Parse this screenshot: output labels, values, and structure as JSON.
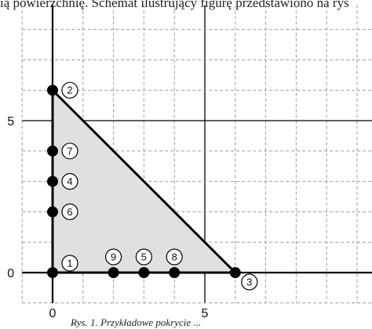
{
  "caption_top": "ią powierzchnię. Schemat ilustrujący figurę przedstawiono na rys",
  "caption_bottom": "Rys. 1. Przykładowe pokrycie ...",
  "axes": {
    "x_ticks": [
      {
        "value": 0,
        "label": "0"
      },
      {
        "value": 5,
        "label": "5"
      }
    ],
    "y_ticks": [
      {
        "value": 0,
        "label": "0"
      },
      {
        "value": 5,
        "label": "5"
      }
    ],
    "xlim": [
      -1,
      10.5
    ],
    "ylim": [
      -1,
      8.8
    ],
    "grid_step": 1
  },
  "triangle": {
    "vertices": [
      [
        0,
        0
      ],
      [
        0,
        6
      ],
      [
        6,
        0
      ]
    ],
    "fill": "#e0e0e0",
    "stroke": "#000000"
  },
  "points": [
    {
      "label": "1",
      "x": 0,
      "y": 0
    },
    {
      "label": "2",
      "x": 0,
      "y": 6
    },
    {
      "label": "3",
      "x": 6,
      "y": 0
    },
    {
      "label": "4",
      "x": 0,
      "y": 3
    },
    {
      "label": "5",
      "x": 3,
      "y": 0
    },
    {
      "label": "6",
      "x": 0,
      "y": 2
    },
    {
      "label": "7",
      "x": 0,
      "y": 4
    },
    {
      "label": "8",
      "x": 4,
      "y": 0
    },
    {
      "label": "9",
      "x": 2,
      "y": 0
    }
  ]
}
